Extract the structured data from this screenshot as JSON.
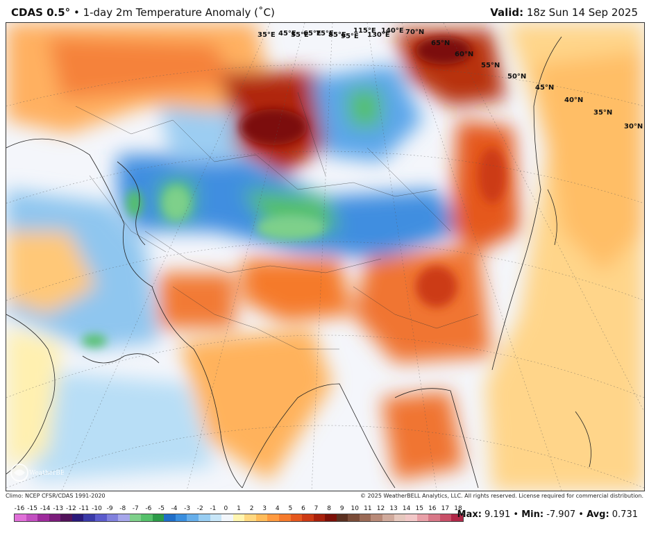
{
  "header": {
    "brand": "CDAS 0.5°",
    "separator": " • ",
    "product": "1-day 2m Temperature Anomaly (˚C)",
    "valid_label": "Valid:",
    "valid_value": " 18z Sun 14 Sep 2025"
  },
  "footer": {
    "climo": "Climo: NCEP CFSR/CDAS 1991-2020",
    "copyright": "© 2025 WeatherBELL Analytics, LLC. All rights reserved. License required for commercial distribution."
  },
  "logo_text": "WeatherBELL",
  "colorbar": {
    "labels": [
      "-16",
      "-15",
      "-14",
      "-13",
      "-12",
      "-11",
      "-10",
      "-9",
      "-8",
      "-7",
      "-6",
      "-5",
      "-4",
      "-3",
      "-2",
      "-1",
      "0",
      "1",
      "2",
      "3",
      "4",
      "5",
      "6",
      "7",
      "8",
      "9",
      "10",
      "11",
      "12",
      "13",
      "14",
      "15",
      "16",
      "17",
      "18"
    ],
    "colors": [
      "#e070d8",
      "#c24fc0",
      "#9e2b9c",
      "#7a1c7a",
      "#52135a",
      "#2a1a7a",
      "#3a3aa8",
      "#5b5bcc",
      "#8080dd",
      "#a6a6ea",
      "#7ed08a",
      "#55c06a",
      "#2c9a48",
      "#1f6ec8",
      "#3a8ede",
      "#66aeea",
      "#98cdf2",
      "#c8e6f8",
      "#f2f6fb",
      "#fff5b0",
      "#ffd880",
      "#ffbc5a",
      "#ff9a40",
      "#f57a2c",
      "#e5581e",
      "#cc3a14",
      "#a8200c",
      "#7c1008",
      "#5a3020",
      "#7a4c38",
      "#9a6a56",
      "#b88a78",
      "#d0aa9c",
      "#e6c8be",
      "#f2c8c8",
      "#e8a0a8",
      "#d87888",
      "#c85068",
      "#b02848"
    ]
  },
  "stats": {
    "max_label": "Max:",
    "max_value": "9.191",
    "min_label": "Min:",
    "min_value": "-7.907",
    "avg_label": "Avg:",
    "avg_value": "0.731",
    "sep": " • "
  },
  "map": {
    "lon_labels": [
      "35°E",
      "45°E",
      "55°E",
      "65°E",
      "75°E",
      "85°E",
      "95°E",
      "115°E",
      "130°E",
      "140°E"
    ],
    "lat_labels": [
      "70°N",
      "65°N",
      "60°N",
      "55°N",
      "50°N",
      "45°N",
      "40°N",
      "35°N",
      "30°N"
    ]
  }
}
